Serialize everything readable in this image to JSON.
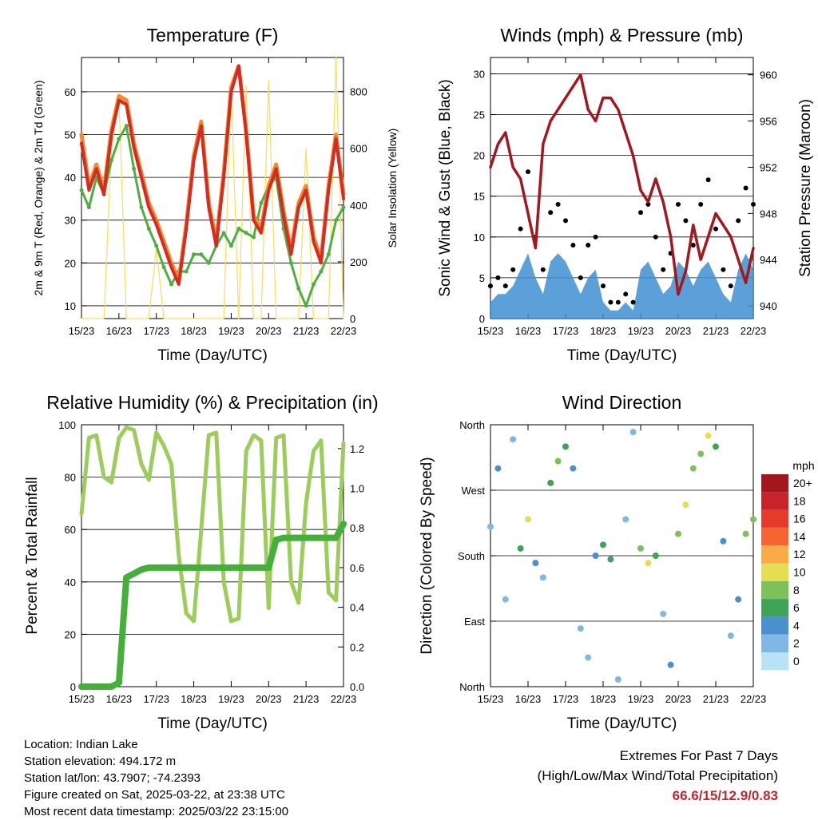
{
  "x_ticks": [
    "15/23",
    "16/23",
    "17/23",
    "18/23",
    "19/23",
    "20/23",
    "21/23",
    "22/23"
  ],
  "colors": {
    "temp2m": "#d52b22",
    "temp9m": "#f28a2e",
    "dewpoint": "#4caf3f",
    "solar": "#f7dd5a",
    "wind": "#3f8fd2",
    "gust": "#000000",
    "pressure": "#a0191e",
    "rh": "#9ccc5a",
    "precip": "#44b03a"
  },
  "speed_legend": {
    "title": "mph",
    "labels": [
      "20+",
      "18",
      "16",
      "14",
      "12",
      "10",
      "8",
      "6",
      "4",
      "2",
      "0"
    ],
    "colors": [
      "#a3161c",
      "#c8232b",
      "#e63a2d",
      "#f5652f",
      "#fbaa48",
      "#e4df52",
      "#7cc258",
      "#3fa45a",
      "#4b8fcc",
      "#7fb8e4",
      "#b8e3f7"
    ]
  },
  "chart_data": [
    {
      "type": "line",
      "title": "Temperature (F)",
      "xlabel": "Time (Day/UTC)",
      "ylabel": "2m & 9m T (Red, Orange) & 2m Td (Green)",
      "y2label": "Solar Insolation (Yellow)",
      "ylim": [
        7,
        68
      ],
      "y2lim": [
        0,
        920
      ],
      "yticks": [
        10,
        20,
        30,
        40,
        50,
        60
      ],
      "y2ticks": [
        0,
        200,
        400,
        600,
        800
      ],
      "x": [
        0,
        0.2,
        0.4,
        0.6,
        0.8,
        1.0,
        1.2,
        1.4,
        1.6,
        1.8,
        2.0,
        2.2,
        2.4,
        2.6,
        2.8,
        3.0,
        3.2,
        3.4,
        3.6,
        3.8,
        4.0,
        4.2,
        4.4,
        4.6,
        4.8,
        5.0,
        5.2,
        5.4,
        5.6,
        5.8,
        6.0,
        6.2,
        6.4,
        6.6,
        6.8,
        7.0
      ],
      "series": [
        {
          "values": [
            48,
            37,
            42,
            36,
            50,
            58,
            57,
            47,
            40,
            33,
            29,
            24,
            19,
            15,
            28,
            44,
            52,
            33,
            24,
            40,
            60,
            66,
            50,
            30,
            27,
            37,
            42,
            31,
            22,
            33,
            37,
            25,
            20,
            37,
            49,
            35
          ]
        },
        {
          "values": [
            50,
            38,
            43,
            37,
            51,
            59,
            58,
            48,
            41,
            34,
            30,
            25,
            20,
            16,
            29,
            45,
            53,
            34,
            25,
            41,
            61,
            66,
            51,
            31,
            28,
            38,
            43,
            32,
            23,
            34,
            38,
            26,
            21,
            38,
            50,
            36
          ]
        },
        {
          "values": [
            37,
            33,
            40,
            36,
            44,
            49,
            52,
            42,
            33,
            28,
            24,
            19,
            15,
            18,
            18,
            22,
            22,
            20,
            24,
            27,
            24,
            28,
            27,
            26,
            34,
            38,
            40,
            28,
            20,
            14,
            10,
            15,
            18,
            22,
            30,
            33
          ]
        },
        {
          "values": [
            0,
            0,
            0,
            0,
            600,
            780,
            0,
            0,
            0,
            0,
            250,
            0,
            0,
            0,
            0,
            0,
            0,
            0,
            0,
            0,
            820,
            0,
            820,
            0,
            0,
            840,
            0,
            0,
            0,
            0,
            600,
            0,
            0,
            0,
            920,
            0
          ]
        }
      ]
    },
    {
      "type": "scatter",
      "title": "Winds (mph) & Pressure (mb)",
      "xlabel": "Time (Day/UTC)",
      "ylabel": "Sonic Wind & Gust (Blue, Black)",
      "y2label": "Station Pressure (Maroon)",
      "ylim": [
        0,
        32
      ],
      "y2lim": [
        938.9,
        961.5
      ],
      "yticks": [
        0,
        5,
        10,
        15,
        20,
        25,
        30
      ],
      "y2ticks": [
        940,
        944,
        948,
        952,
        956,
        960
      ],
      "x": [
        0,
        0.2,
        0.4,
        0.6,
        0.8,
        1.0,
        1.2,
        1.4,
        1.6,
        1.8,
        2.0,
        2.2,
        2.4,
        2.6,
        2.8,
        3.0,
        3.2,
        3.4,
        3.6,
        3.8,
        4.0,
        4.2,
        4.4,
        4.6,
        4.8,
        5.0,
        5.2,
        5.4,
        5.6,
        5.8,
        6.0,
        6.2,
        6.4,
        6.6,
        6.8,
        7.0
      ],
      "series": [
        {
          "values": [
            2,
            3,
            3,
            4,
            6,
            8,
            5,
            3,
            7,
            8,
            7,
            5,
            3,
            5,
            6,
            2,
            1,
            1,
            2,
            1,
            6,
            7,
            5,
            3,
            4,
            7,
            6,
            4,
            6,
            7,
            5,
            3,
            2,
            6,
            8,
            6
          ]
        },
        {
          "values": [
            4,
            5,
            4,
            6,
            11,
            18,
            10,
            6,
            13,
            14,
            12,
            9,
            5,
            9,
            10,
            4,
            2,
            2,
            3,
            2,
            13,
            14,
            10,
            6,
            8,
            14,
            12,
            9,
            14,
            17,
            11,
            6,
            4,
            12,
            16,
            14
          ]
        },
        {
          "values": [
            952,
            954,
            955,
            952,
            951,
            948,
            945,
            954,
            956,
            957,
            958,
            959,
            960,
            957,
            956,
            958,
            958,
            957,
            955,
            953,
            950,
            949,
            951,
            949,
            946,
            941,
            943,
            947,
            944,
            946,
            948,
            947,
            946,
            944,
            942,
            945
          ]
        }
      ]
    },
    {
      "type": "line",
      "title": "Relative Humidity (%) & Precipitation (in)",
      "xlabel": "Time (Day/UTC)",
      "ylabel": "Percent & Total Rainfall",
      "ylim": [
        0,
        100
      ],
      "y2lim": [
        0,
        1.32
      ],
      "yticks": [
        0,
        20,
        40,
        60,
        80,
        100
      ],
      "y2ticks": [
        0.0,
        0.2,
        0.4,
        0.6,
        0.8,
        1.0,
        1.2
      ],
      "x": [
        0,
        0.2,
        0.4,
        0.6,
        0.8,
        1.0,
        1.2,
        1.4,
        1.6,
        1.8,
        2.0,
        2.2,
        2.4,
        2.6,
        2.8,
        3.0,
        3.2,
        3.4,
        3.6,
        3.8,
        4.0,
        4.2,
        4.4,
        4.6,
        4.8,
        5.0,
        5.2,
        5.4,
        5.6,
        5.8,
        6.0,
        6.2,
        6.4,
        6.6,
        6.8,
        7.0
      ],
      "series": [
        {
          "values": [
            66,
            95,
            96,
            80,
            78,
            95,
            99,
            98,
            85,
            79,
            97,
            92,
            85,
            50,
            28,
            25,
            60,
            96,
            97,
            40,
            25,
            26,
            90,
            96,
            94,
            30,
            95,
            96,
            40,
            32,
            70,
            90,
            94,
            36,
            33,
            93
          ]
        },
        {
          "values": [
            0,
            0,
            0,
            0,
            0,
            0.02,
            0.55,
            0.57,
            0.59,
            0.6,
            0.6,
            0.6,
            0.6,
            0.6,
            0.6,
            0.6,
            0.6,
            0.6,
            0.6,
            0.6,
            0.6,
            0.6,
            0.6,
            0.6,
            0.6,
            0.6,
            0.74,
            0.75,
            0.75,
            0.75,
            0.75,
            0.75,
            0.75,
            0.75,
            0.75,
            0.82
          ]
        }
      ]
    },
    {
      "type": "scatter",
      "title": "Wind Direction",
      "xlabel": "Time (Day/UTC)",
      "ylabel": "Direction (Colored By Speed)",
      "ylim": [
        0,
        360
      ],
      "yticks": [
        0,
        90,
        180,
        270,
        360
      ],
      "ytick_labels": [
        "North",
        "East",
        "South",
        "West",
        "North"
      ],
      "x": [
        0,
        0.2,
        0.4,
        0.6,
        0.8,
        1.0,
        1.2,
        1.4,
        1.6,
        1.8,
        2.0,
        2.2,
        2.4,
        2.6,
        2.8,
        3.0,
        3.2,
        3.4,
        3.6,
        3.8,
        4.0,
        4.2,
        4.4,
        4.6,
        4.8,
        5.0,
        5.2,
        5.4,
        5.6,
        5.8,
        6.0,
        6.2,
        6.4,
        6.6,
        6.8,
        7.0
      ],
      "series": [
        {
          "values": [
            220,
            300,
            120,
            340,
            190,
            230,
            170,
            150,
            280,
            310,
            330,
            300,
            80,
            40,
            180,
            195,
            175,
            10,
            230,
            350,
            190,
            170,
            180,
            100,
            30,
            210,
            250,
            300,
            320,
            345,
            330,
            200,
            70,
            120,
            210,
            230
          ]
        },
        {
          "values": [
            2,
            3,
            1,
            2,
            5,
            9,
            4,
            2,
            6,
            7,
            6,
            3,
            1,
            2,
            3,
            6,
            5,
            1,
            2,
            1,
            7,
            9,
            6,
            2,
            3,
            8,
            9,
            7,
            8,
            10,
            6,
            3,
            1,
            4,
            8,
            7
          ]
        }
      ]
    }
  ],
  "info": {
    "location": "Location: Indian Lake",
    "elevation": "Station elevation: 494.172 m",
    "latlon": "Station lat/lon: 43.7907; -74.2393",
    "created": "Figure created on Sat, 2025-03-22, at 23:38 UTC",
    "recent": "Most recent data timestamp: 2025/03/22 23:15:00"
  },
  "extremes": {
    "title": "Extremes For Past 7 Days",
    "subtitle": "(High/Low/Max Wind/Total Precipitation)",
    "values": "66.6/15/12.9/0.83"
  }
}
